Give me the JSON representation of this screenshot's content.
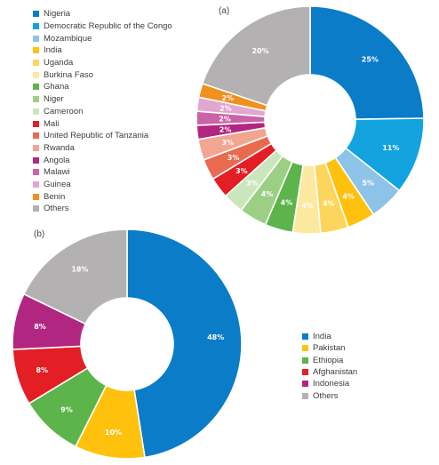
{
  "chart_data": [
    {
      "type": "pie",
      "panel": "(a)",
      "categories": [
        "Nigeria",
        "Democratic Republic of the Congo",
        "Mozambique",
        "India",
        "Uganda",
        "Burkina Faso",
        "Ghana",
        "Niger",
        "Cameroon",
        "Mali",
        "United Republic of Tanzania",
        "Rwanda",
        "Angola",
        "Malawi",
        "Guinea",
        "Benin",
        "Others"
      ],
      "values": [
        25,
        11,
        5,
        4,
        4,
        4,
        4,
        4,
        3,
        3,
        3,
        3,
        2,
        2,
        2,
        2,
        20
      ],
      "data_labels": [
        "25%",
        "11%",
        "5%",
        "4%",
        "4%",
        "4%",
        "4%",
        "4%",
        "3%",
        "3%",
        "3%",
        "3%",
        "2%",
        "2%",
        "2%",
        "2%",
        "20%"
      ],
      "colors": [
        "#0a7cc8",
        "#12a3df",
        "#8ec3e8",
        "#fec20e",
        "#fdd55c",
        "#fde8a0",
        "#5cb44a",
        "#9bd084",
        "#cbe6bd",
        "#e31e24",
        "#e86a4f",
        "#f2a590",
        "#b12680",
        "#c964a8",
        "#e2a6d0",
        "#f0901e",
        "#b3b1b1"
      ],
      "legend_position": "left"
    },
    {
      "type": "pie",
      "panel": "(b)",
      "categories": [
        "India",
        "Pakistan",
        "Ethiopia",
        "Afghanistan",
        "Indonesia",
        "Others"
      ],
      "values": [
        48,
        10,
        9,
        8,
        8,
        18
      ],
      "data_labels": [
        "48%",
        "10%",
        "9%",
        "8%",
        "8%",
        "18%"
      ],
      "colors": [
        "#0a7cc8",
        "#fec20e",
        "#5cb44a",
        "#e31e24",
        "#b12680",
        "#b3b1b1"
      ],
      "legend_position": "right"
    }
  ]
}
